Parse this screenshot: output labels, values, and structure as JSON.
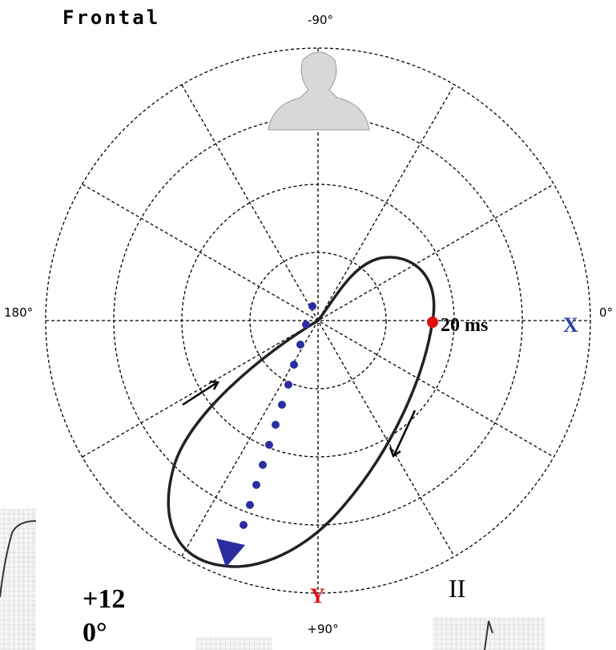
{
  "header": {
    "title": "Frontal"
  },
  "axes": {
    "top": "-90°",
    "left": "180°",
    "right": "0°",
    "bottom": "+90°",
    "x_label": "X",
    "y_label": "Y"
  },
  "annotations": {
    "time_marker": "20 ms",
    "lead": "II",
    "axis_angle_line1": "+12",
    "axis_angle_line2": "0°"
  }
}
